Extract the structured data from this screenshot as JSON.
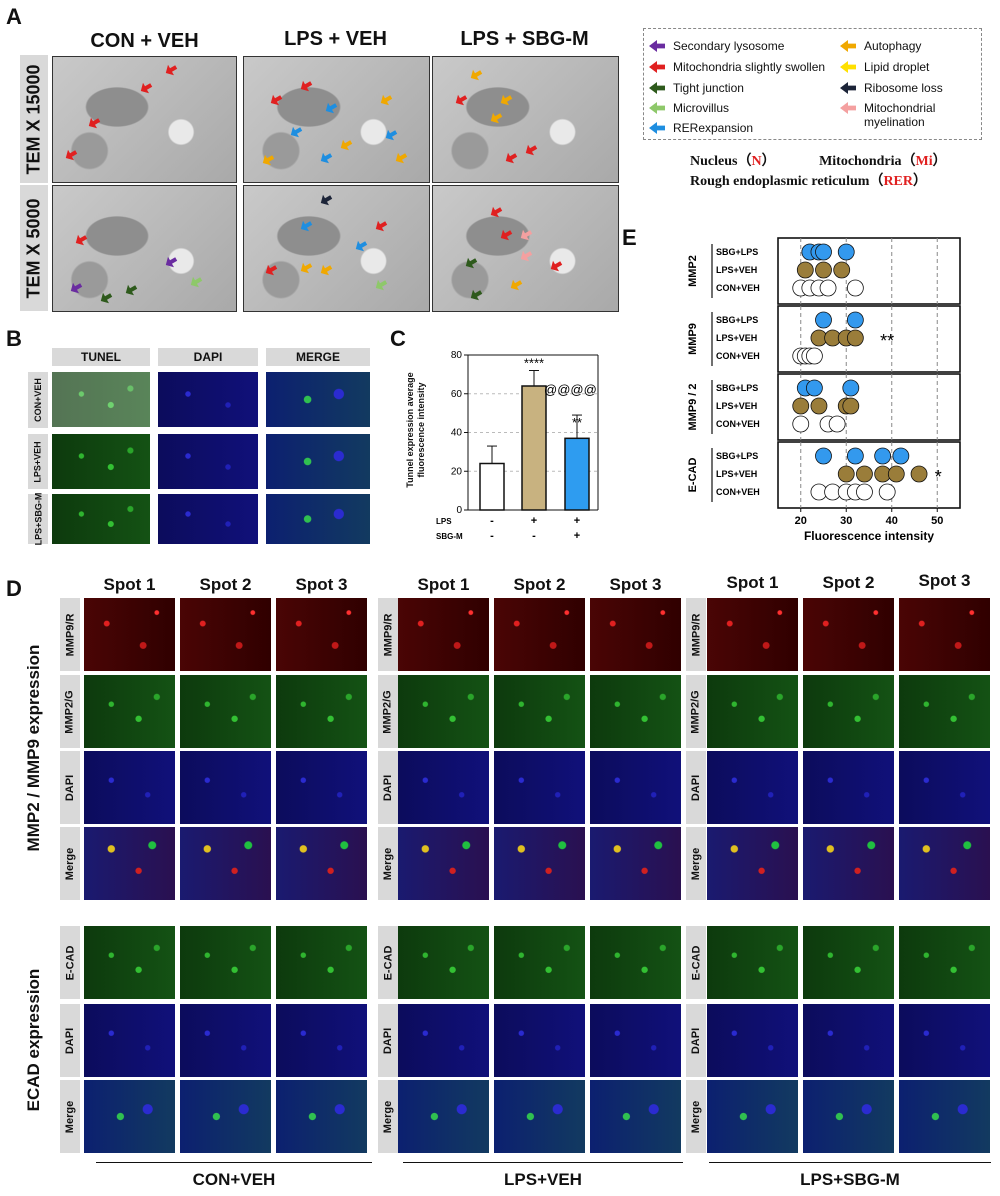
{
  "panel_a": {
    "letter": "A",
    "columns": [
      "CON + VEH",
      "LPS + VEH",
      "LPS + SBG-M"
    ],
    "rows": [
      "TEM X 15000",
      "TEM X 5000"
    ],
    "legend": [
      {
        "label": "Secondary lysosome",
        "color": "#6a2ca0"
      },
      {
        "label": "Mitochondria slightly swollen",
        "color": "#e02020"
      },
      {
        "label": "Tight junction",
        "color": "#2e5a1c"
      },
      {
        "label": "Microvillus",
        "color": "#8ec86a"
      },
      {
        "label": "RERexpansion",
        "color": "#1e8ee0"
      },
      {
        "label": "Autophagy",
        "color": "#f0a800"
      },
      {
        "label": "Lipid droplet",
        "color": "#ffe000"
      },
      {
        "label": "Ribosome loss",
        "color": "#1c2438"
      },
      {
        "label": "Mitochondrial myelination",
        "color": "#f4a0a0"
      }
    ],
    "abbrev_line1": {
      "nucleus": "Nucleus（",
      "n": "N",
      "close1": "）",
      "mito": "Mitochondria（",
      "mi": "Mi",
      "close2": "）"
    },
    "abbrev_line2": {
      "rer_text": "Rough endoplasmic reticulum（",
      "rer": "RER",
      "close": "）"
    }
  },
  "panel_b": {
    "letter": "B",
    "columns": [
      "TUNEL",
      "DAPI",
      "MERGE"
    ],
    "rows": [
      "CON+VEH",
      "LPS+VEH",
      "LPS+SBG-M"
    ]
  },
  "panel_c": {
    "letter": "C",
    "ylabel_line1": "Tunnel expression average",
    "ylabel_line2": "fluorescence intensity",
    "row_labels": [
      "LPS",
      "SBG-M"
    ],
    "signs": [
      [
        "-",
        "+",
        "+"
      ],
      [
        "-",
        "-",
        "+"
      ]
    ],
    "annotations": [
      "****",
      "@@@@",
      "**"
    ]
  },
  "panel_d": {
    "letter": "D",
    "spots": [
      "Spot 1",
      "Spot 2",
      "Spot 3"
    ],
    "section1_title": "MMP2 / MMP9 expression",
    "section1_rows": [
      "MMP9/R",
      "MMP2/G",
      "DAPI",
      "Merge"
    ],
    "section2_title": "ECAD expression",
    "section2_rows": [
      "E-CAD",
      "DAPI",
      "Merge"
    ],
    "groups": [
      "CON+VEH",
      "LPS+VEH",
      "LPS+SBG-M"
    ]
  },
  "panel_e": {
    "letter": "E",
    "xlabel": "Fluorescence intensity",
    "panels": [
      "MMP2",
      "MMP9",
      "MMP9 / 2",
      "E-CAD"
    ],
    "group_labels": [
      "SBG+LPS",
      "LPS+VEH",
      "CON+VEH"
    ],
    "stars": [
      "",
      "**",
      "",
      "*"
    ]
  },
  "chart_data": [
    {
      "type": "bar",
      "categories": [
        "-/-",
        "+/-",
        "+/+"
      ],
      "values": [
        24,
        64,
        37
      ],
      "errors": [
        9,
        8,
        12
      ],
      "colors": [
        "#ffffff",
        "#c8b280",
        "#2e9cf0"
      ],
      "ylabel": "Tunnel expression average fluorescence intensity",
      "ylim": [
        0,
        80
      ],
      "yticks": [
        0,
        20,
        40,
        60,
        80
      ],
      "grid": true
    },
    {
      "type": "scatter",
      "xlim": [
        15,
        55
      ],
      "xticks": [
        20,
        30,
        40,
        50
      ],
      "xlabel": "Fluorescence intensity",
      "series_colors": {
        "SBG+LPS": "#3399ee",
        "LPS+VEH": "#9a7d3a",
        "CON+VEH": "#ffffff"
      },
      "panels": [
        {
          "name": "MMP2",
          "points": {
            "SBG+LPS": [
              22,
              24,
              25,
              30
            ],
            "LPS+VEH": [
              21,
              25,
              29
            ],
            "CON+VEH": [
              20,
              22,
              24,
              26,
              32
            ]
          }
        },
        {
          "name": "MMP9",
          "points": {
            "SBG+LPS": [
              25,
              32
            ],
            "LPS+VEH": [
              24,
              27,
              30,
              32
            ],
            "CON+VEH": [
              20,
              21,
              22,
              23
            ]
          }
        },
        {
          "name": "MMP9 / 2",
          "points": {
            "SBG+LPS": [
              21,
              23,
              31
            ],
            "LPS+VEH": [
              20,
              24,
              30,
              31
            ],
            "CON+VEH": [
              20,
              26,
              28
            ]
          }
        },
        {
          "name": "E-CAD",
          "points": {
            "SBG+LPS": [
              25,
              32,
              38,
              42
            ],
            "LPS+VEH": [
              30,
              34,
              38,
              41,
              46
            ],
            "CON+VEH": [
              24,
              27,
              30,
              32,
              34,
              39
            ]
          }
        }
      ]
    }
  ]
}
